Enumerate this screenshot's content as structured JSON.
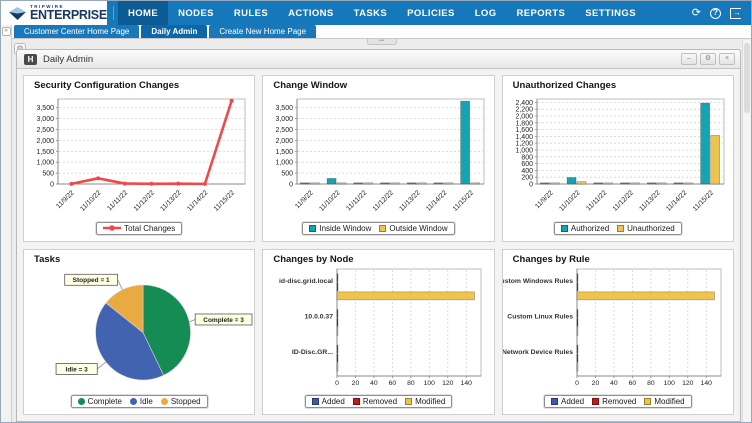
{
  "nav": {
    "brand_top": "TRIPWIRE",
    "brand_main": "ENTERPRISE",
    "items": [
      {
        "label": "HOME",
        "active": true
      },
      {
        "label": "NODES"
      },
      {
        "label": "RULES"
      },
      {
        "label": "ACTIONS"
      },
      {
        "label": "TASKS"
      },
      {
        "label": "POLICIES"
      },
      {
        "label": "LOG"
      },
      {
        "label": "REPORTS"
      },
      {
        "label": "SETTINGS"
      }
    ],
    "actions": [
      {
        "name": "refresh-icon",
        "glyph": "⟳"
      },
      {
        "name": "help-icon",
        "glyph": "?"
      },
      {
        "name": "logout-icon",
        "glyph": "→"
      }
    ]
  },
  "tabs": [
    {
      "label": "Customer Center Home Page",
      "active": false
    },
    {
      "label": "Daily Admin",
      "active": true
    },
    {
      "label": "Create New Home Page",
      "active": false
    }
  ],
  "panel": {
    "title": "Daily Admin",
    "buttons": [
      {
        "name": "minimize",
        "glyph": "–"
      },
      {
        "name": "settings",
        "glyph": "⚙"
      },
      {
        "name": "close",
        "glyph": "×"
      }
    ]
  },
  "colors": {
    "nav_blue": "#1578ba",
    "nav_active": "#0d5b95",
    "accent_red": "#ef4a4a",
    "teal": "#16a3b2",
    "yellow": "#eec34f",
    "pie_green": "#168c55",
    "pie_blue": "#4263b0",
    "pie_orange": "#e9ab41",
    "bar_blue": "#3c5ba8",
    "bar_red": "#c11a1d"
  },
  "chart_data": [
    {
      "type": "line",
      "title": "Security Configuration Changes",
      "x": [
        "11/9/22",
        "11/10/22",
        "11/11/22",
        "11/12/22",
        "11/13/22",
        "11/14/22",
        "11/15/22"
      ],
      "series": [
        {
          "name": "Total Changes",
          "color": "#ef4a4a",
          "values": [
            5,
            260,
            20,
            10,
            15,
            5,
            3820
          ]
        }
      ],
      "yticks": [
        0,
        500,
        1000,
        1500,
        2000,
        2500,
        3000,
        3500
      ],
      "ylim": [
        0,
        3900
      ],
      "legend_position": "bottom",
      "grid": true
    },
    {
      "type": "bar",
      "title": "Change Window",
      "categories": [
        "11/9/22",
        "11/10/22",
        "11/11/22",
        "11/12/22",
        "11/13/22",
        "11/14/22",
        "11/15/22"
      ],
      "series": [
        {
          "name": "Inside Window",
          "color": "#16a3b2",
          "values": [
            0,
            255,
            0,
            0,
            0,
            0,
            3800
          ]
        },
        {
          "name": "Outside Window",
          "color": "#eec34f",
          "values": [
            0,
            0,
            0,
            0,
            0,
            0,
            0
          ]
        }
      ],
      "yticks": [
        0,
        500,
        1000,
        1500,
        2000,
        2500,
        3000,
        3500
      ],
      "ylim": [
        0,
        3900
      ],
      "legend_position": "bottom",
      "grid": true
    },
    {
      "type": "bar",
      "title": "Unauthorized Changes",
      "categories": [
        "11/9/22",
        "11/10/22",
        "11/11/22",
        "11/12/22",
        "11/13/22",
        "11/14/22",
        "11/15/22"
      ],
      "series": [
        {
          "name": "Authorized",
          "color": "#16a3b2",
          "values": [
            0,
            190,
            0,
            0,
            0,
            0,
            2380
          ]
        },
        {
          "name": "Unauthorized",
          "color": "#eec34f",
          "values": [
            0,
            70,
            0,
            0,
            0,
            0,
            1430
          ]
        }
      ],
      "yticks": [
        0,
        200,
        400,
        600,
        800,
        1000,
        1200,
        1400,
        1600,
        1800,
        2000,
        2200,
        2400
      ],
      "ylim": [
        0,
        2500
      ],
      "legend_position": "bottom",
      "grid": true
    },
    {
      "type": "pie",
      "title": "Tasks",
      "slices": [
        {
          "name": "Complete",
          "value": 3,
          "label": "Complete = 3",
          "color": "#168c55"
        },
        {
          "name": "Idle",
          "value": 3,
          "label": "Idle = 3",
          "color": "#4263b0"
        },
        {
          "name": "Stopped",
          "value": 1,
          "label": "Stopped = 1",
          "color": "#e9ab41"
        }
      ],
      "legend_position": "bottom"
    },
    {
      "type": "hbar",
      "title": "Changes by Node",
      "categories": [
        "id-disc.grid.local",
        "10.0.0.37",
        "ID-Disc.GR..."
      ],
      "series": [
        {
          "name": "Added",
          "color": "#3c5ba8",
          "values": [
            0,
            0,
            0
          ]
        },
        {
          "name": "Removed",
          "color": "#c11a1d",
          "values": [
            0,
            0,
            0
          ]
        },
        {
          "name": "Modified",
          "color": "#eec34f",
          "values": [
            149,
            0,
            0
          ]
        }
      ],
      "xticks": [
        0,
        20,
        40,
        60,
        80,
        100,
        120,
        140
      ],
      "xlim": [
        0,
        156
      ],
      "legend_position": "bottom",
      "grid": true
    },
    {
      "type": "hbar",
      "title": "Changes by Rule",
      "categories": [
        "Custom Windows Rules",
        "Custom Linux Rules",
        "Network Device Rules"
      ],
      "series": [
        {
          "name": "Added",
          "color": "#3c5ba8",
          "values": [
            0,
            0,
            0
          ]
        },
        {
          "name": "Removed",
          "color": "#c11a1d",
          "values": [
            0,
            0,
            0
          ]
        },
        {
          "name": "Modified",
          "color": "#eec34f",
          "values": [
            149,
            0,
            0
          ]
        }
      ],
      "xticks": [
        0,
        20,
        40,
        60,
        80,
        100,
        120,
        140
      ],
      "xlim": [
        0,
        156
      ],
      "legend_position": "bottom",
      "grid": true
    }
  ]
}
